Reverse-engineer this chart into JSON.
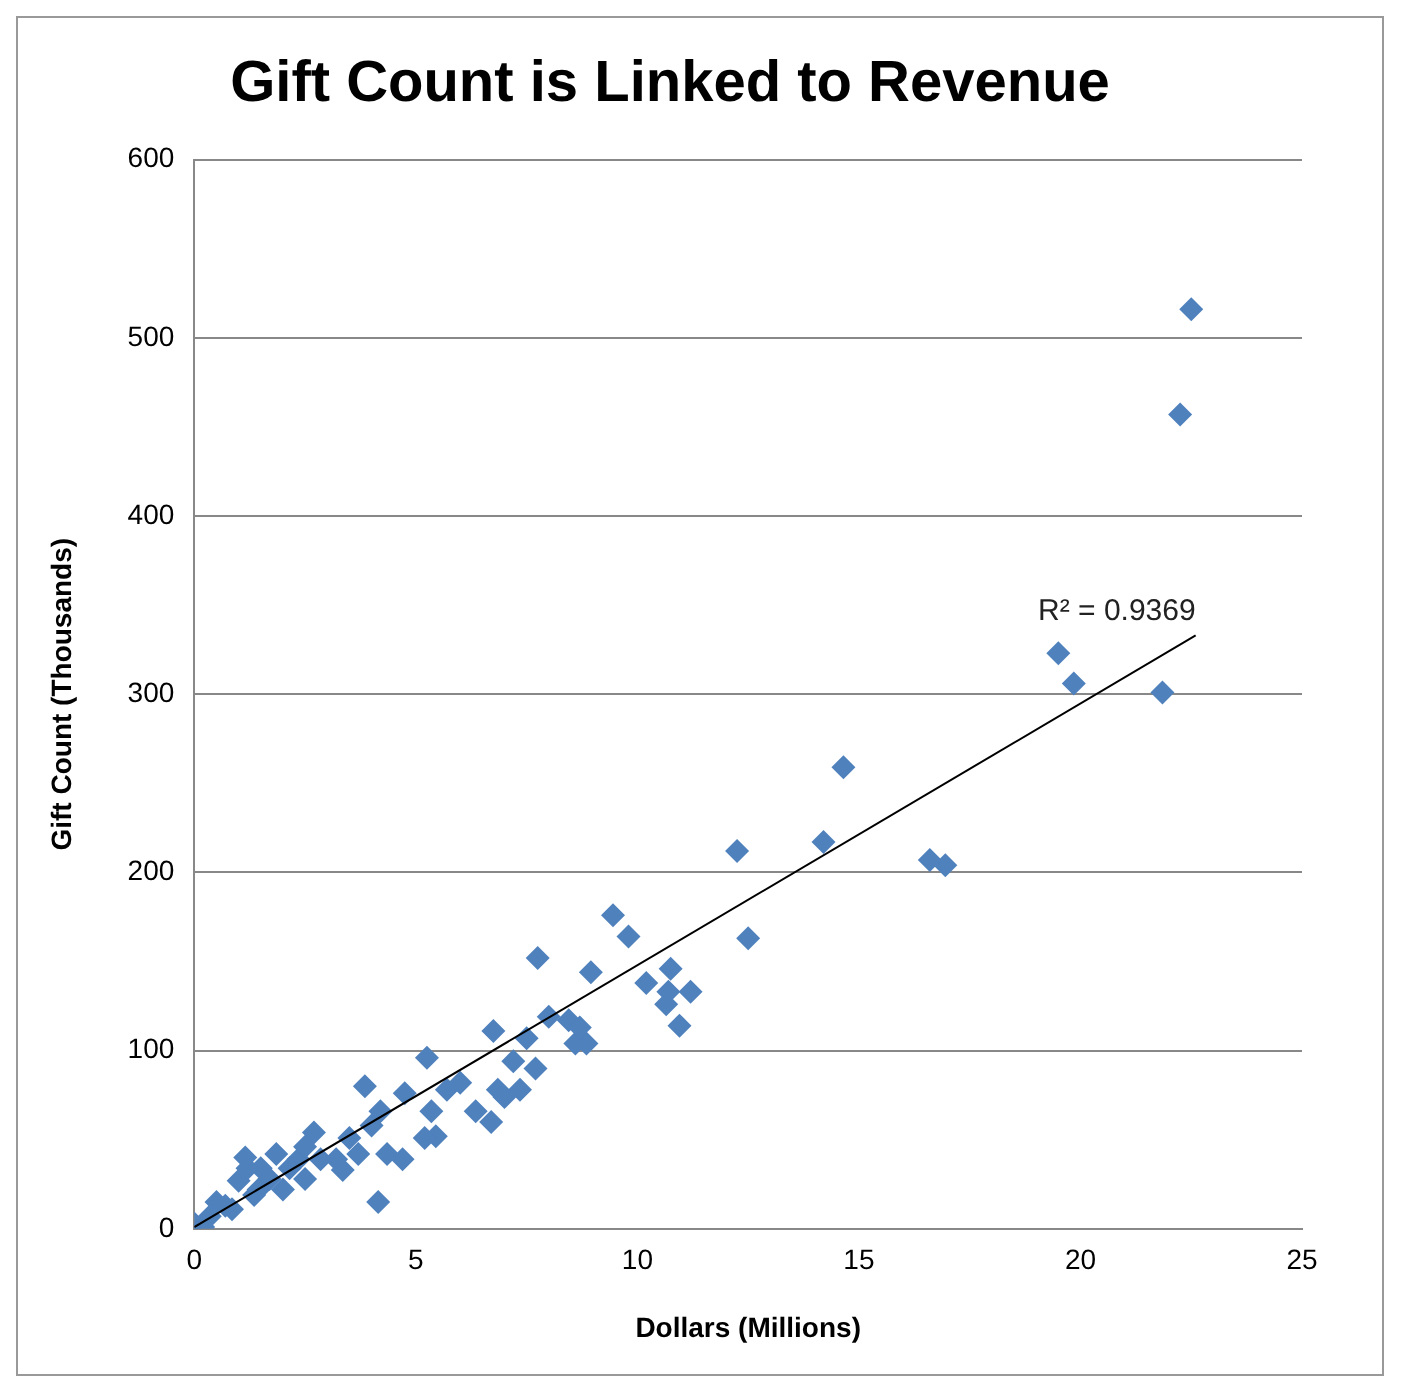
{
  "chart_data": {
    "type": "scatter",
    "title": "Gift Count is Linked to Revenue",
    "xlabel": "Dollars (Millions)",
    "ylabel": "Gift Count (Thousands)",
    "xlim": [
      0,
      25
    ],
    "xticks": [
      0,
      5,
      10,
      15,
      20,
      25
    ],
    "ylim": [
      0,
      600
    ],
    "yticks": [
      0,
      100,
      200,
      300,
      400,
      500,
      600
    ],
    "grid": "y",
    "marker": "diamond",
    "series": [
      {
        "color": "#4f81bd",
        "x": [
          22.5,
          22.25,
          19.5,
          19.85,
          21.85,
          14.65,
          12.25,
          14.2,
          16.6,
          16.95,
          9.45,
          9.8,
          12.5,
          8.95,
          10.75,
          10.2,
          10.7,
          11.2,
          10.65,
          10.95,
          8.85,
          7.75,
          8.45,
          8.6,
          6.75,
          7.5,
          7.2,
          7.35,
          6.7,
          7.0,
          5.25,
          3.85,
          4.75,
          4.2,
          5.7,
          6.0,
          5.35,
          5.45,
          4.35,
          4.15,
          4.7,
          3.5,
          2.7,
          2.35,
          1.85,
          1.5,
          1.0,
          1.2,
          2.0,
          0.5,
          0,
          0.35,
          0.85,
          3.2,
          3.7,
          1.35,
          1.7,
          2.5,
          3.35,
          5.2,
          6.35,
          6.85,
          7.7,
          8.0,
          8.7,
          0.2,
          0.7,
          1.45,
          2.15,
          2.85,
          1.15,
          2.5,
          4.0
        ],
        "values": [
          516,
          457,
          323,
          306,
          301,
          259,
          212,
          217,
          207,
          204,
          176,
          164,
          163,
          144,
          146,
          138,
          133,
          133,
          126,
          114,
          104,
          152,
          117,
          104,
          111,
          107,
          94,
          78,
          60,
          74,
          96,
          80,
          76,
          66,
          78,
          82,
          66,
          52,
          42,
          15,
          39,
          51,
          54,
          39,
          42,
          34,
          27,
          34,
          22,
          15,
          3,
          7,
          11,
          39,
          42,
          19,
          28,
          28,
          33,
          51,
          66,
          78,
          90,
          119,
          113,
          1,
          13,
          22,
          34,
          39,
          40,
          46,
          58
        ]
      },
      {
        "type": "line",
        "color": "#000000",
        "x": [
          0,
          22.6
        ],
        "values": [
          1,
          333
        ],
        "marker": "none"
      }
    ],
    "annotations": [
      "R² = 0.9369"
    ],
    "legend": false
  }
}
